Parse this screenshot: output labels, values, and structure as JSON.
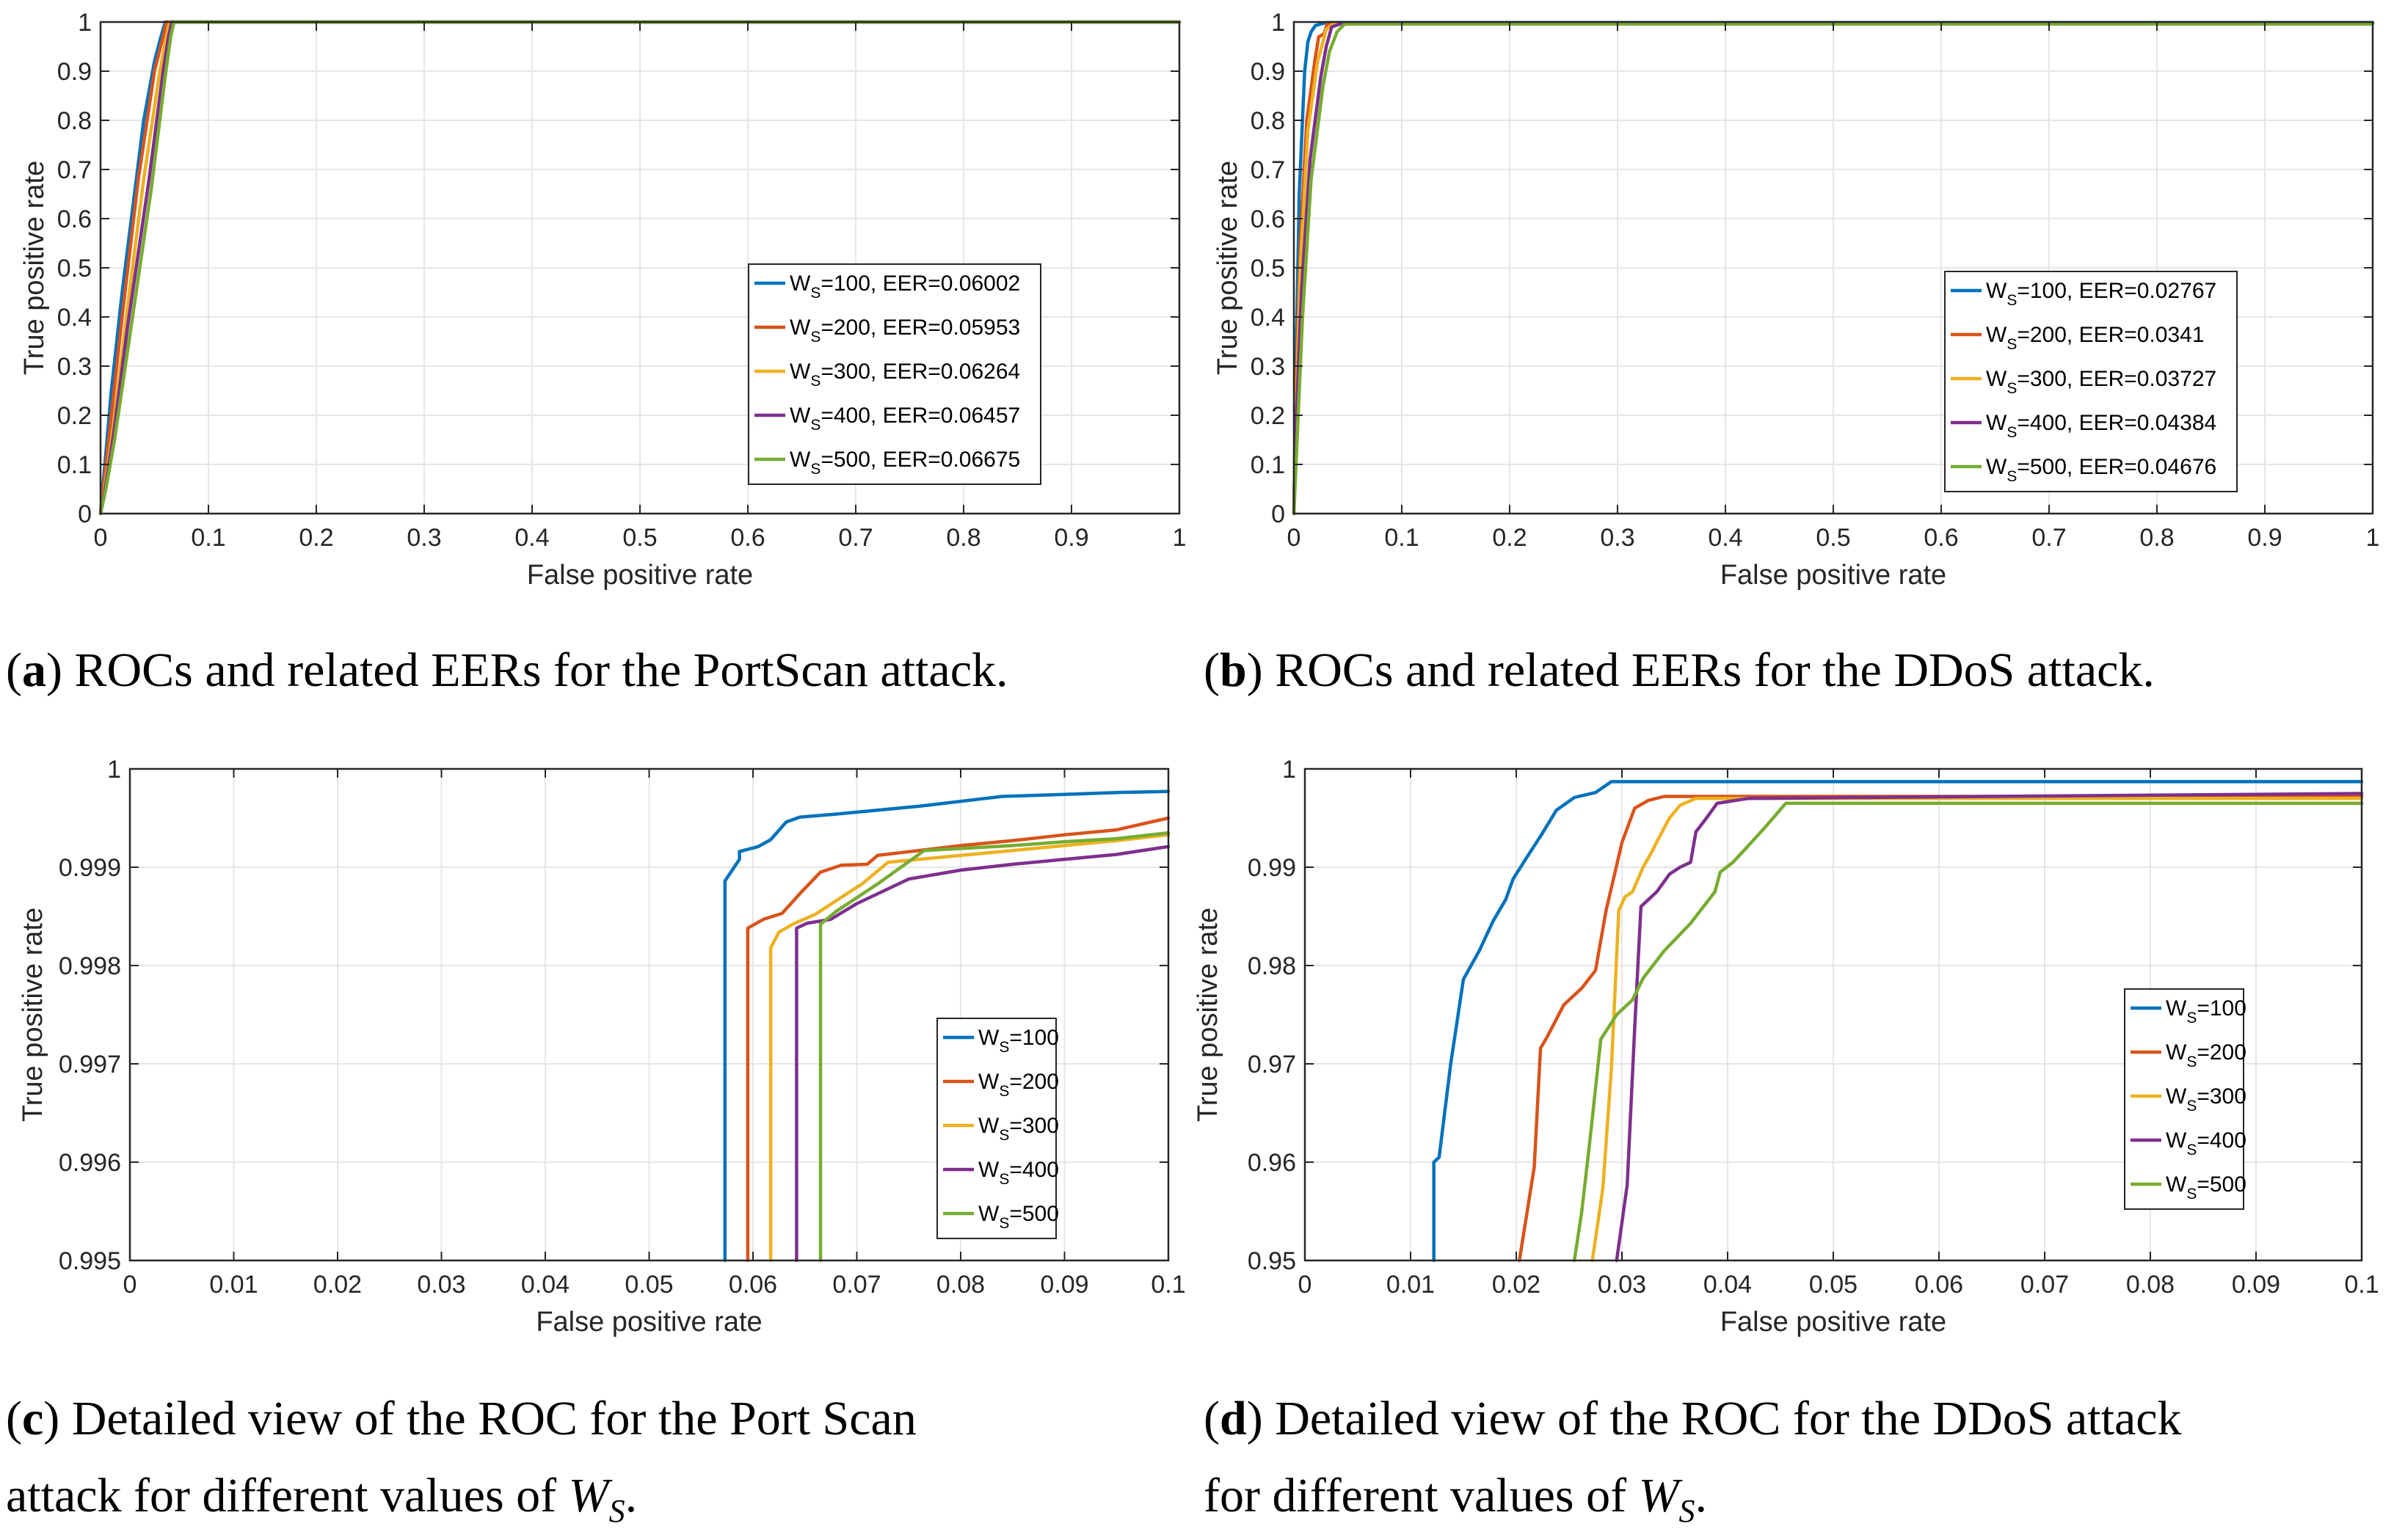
{
  "chart_data": [
    {
      "type": "line",
      "id": "a",
      "xlabel": "False positive rate",
      "ylabel": "True positive rate",
      "xlim": [
        0,
        1
      ],
      "ylim": [
        0,
        1
      ],
      "xticks": [
        "0",
        "0.1",
        "0.2",
        "0.3",
        "0.4",
        "0.5",
        "0.6",
        "0.7",
        "0.8",
        "0.9",
        "1"
      ],
      "yticks": [
        "0",
        "0.1",
        "0.2",
        "0.3",
        "0.4",
        "0.5",
        "0.6",
        "0.7",
        "0.8",
        "0.9",
        "1"
      ],
      "grid": true,
      "legend_position": "center-right",
      "series": [
        {
          "name": "100",
          "eer": "0.06002",
          "color": "#0072BD",
          "x": [
            0,
            0.004,
            0.01,
            0.02,
            0.04,
            0.05,
            0.056,
            0.06,
            1
          ],
          "y": [
            0,
            0.1,
            0.25,
            0.45,
            0.8,
            0.92,
            0.97,
            1,
            1
          ]
        },
        {
          "name": "200",
          "eer": "0.05953",
          "color": "#D95319",
          "x": [
            0,
            0.004,
            0.01,
            0.02,
            0.035,
            0.05,
            0.058,
            0.061,
            1
          ],
          "y": [
            0,
            0.08,
            0.2,
            0.4,
            0.68,
            0.9,
            0.97,
            1,
            1
          ]
        },
        {
          "name": "300",
          "eer": "0.06264",
          "color": "#EDB120",
          "x": [
            0,
            0.005,
            0.012,
            0.025,
            0.04,
            0.055,
            0.061,
            0.064,
            1
          ],
          "y": [
            0,
            0.07,
            0.18,
            0.42,
            0.68,
            0.9,
            0.97,
            1,
            1
          ]
        },
        {
          "name": "400",
          "eer": "0.06457",
          "color": "#7E2F8E",
          "x": [
            0,
            0.005,
            0.012,
            0.025,
            0.045,
            0.058,
            0.063,
            0.066,
            1
          ],
          "y": [
            0,
            0.06,
            0.16,
            0.38,
            0.68,
            0.9,
            0.97,
            1,
            1
          ]
        },
        {
          "name": "500",
          "eer": "0.06675",
          "color": "#77AC30",
          "x": [
            0,
            0.005,
            0.013,
            0.027,
            0.047,
            0.06,
            0.065,
            0.068,
            1
          ],
          "y": [
            0,
            0.05,
            0.15,
            0.36,
            0.66,
            0.89,
            0.97,
            1,
            1
          ]
        }
      ]
    },
    {
      "type": "line",
      "id": "b",
      "xlabel": "False positive rate",
      "ylabel": "True positive rate",
      "xlim": [
        0,
        1
      ],
      "ylim": [
        0,
        1
      ],
      "xticks": [
        "0",
        "0.1",
        "0.2",
        "0.3",
        "0.4",
        "0.5",
        "0.6",
        "0.7",
        "0.8",
        "0.9",
        "1"
      ],
      "yticks": [
        "0",
        "0.1",
        "0.2",
        "0.3",
        "0.4",
        "0.5",
        "0.6",
        "0.7",
        "0.8",
        "0.9",
        "1"
      ],
      "grid": true,
      "legend_position": "center-right",
      "series": [
        {
          "name": "100",
          "eer": "0.02767",
          "color": "#0072BD",
          "x": [
            0,
            0.002,
            0.005,
            0.01,
            0.013,
            0.016,
            0.02,
            0.027,
            0.03,
            1
          ],
          "y": [
            0,
            0.3,
            0.65,
            0.9,
            0.96,
            0.98,
            0.993,
            0.997,
            0.999,
            0.999
          ]
        },
        {
          "name": "200",
          "eer": "0.0341",
          "color": "#D95319",
          "x": [
            0,
            0.002,
            0.006,
            0.012,
            0.02,
            0.023,
            0.028,
            0.031,
            1
          ],
          "y": [
            0,
            0.25,
            0.55,
            0.8,
            0.93,
            0.97,
            0.976,
            0.997,
            0.997
          ]
        },
        {
          "name": "300",
          "eer": "0.03727",
          "color": "#EDB120",
          "x": [
            0,
            0.002,
            0.006,
            0.013,
            0.022,
            0.027,
            0.03,
            0.037,
            1
          ],
          "y": [
            0,
            0.2,
            0.5,
            0.78,
            0.92,
            0.96,
            0.985,
            0.997,
            0.997
          ]
        },
        {
          "name": "400",
          "eer": "0.04384",
          "color": "#7E2F8E",
          "x": [
            0,
            0.002,
            0.007,
            0.015,
            0.025,
            0.03,
            0.035,
            0.044,
            1
          ],
          "y": [
            0,
            0.18,
            0.45,
            0.72,
            0.89,
            0.95,
            0.99,
            0.997,
            0.997
          ]
        },
        {
          "name": "500",
          "eer": "0.04676",
          "color": "#77AC30",
          "x": [
            0,
            0.003,
            0.008,
            0.016,
            0.027,
            0.033,
            0.04,
            0.047,
            1
          ],
          "y": [
            0,
            0.15,
            0.4,
            0.68,
            0.87,
            0.94,
            0.98,
            0.996,
            0.996
          ]
        }
      ]
    },
    {
      "type": "line",
      "id": "c",
      "xlabel": "False positive rate",
      "ylabel": "True positive rate",
      "xlim": [
        0,
        0.1
      ],
      "ylim": [
        0.995,
        1
      ],
      "xticks": [
        "0",
        "0.01",
        "0.02",
        "0.03",
        "0.04",
        "0.05",
        "0.06",
        "0.07",
        "0.08",
        "0.09",
        "0.1"
      ],
      "yticks": [
        "0.995",
        "0.996",
        "0.997",
        "0.998",
        "0.999",
        "1"
      ],
      "grid": true,
      "legend_position": "lower-right",
      "series": [
        {
          "name": "100",
          "color": "#0072BD",
          "x": [
            0.0573,
            0.0573,
            0.0587,
            0.0587,
            0.0605,
            0.0617,
            0.0632,
            0.0645,
            0.068,
            0.072,
            0.076,
            0.08,
            0.084,
            0.09,
            0.095,
            0.1
          ],
          "y": [
            0.995,
            0.99886,
            0.99908,
            0.99916,
            0.99921,
            0.99928,
            0.99946,
            0.99951,
            0.99954,
            0.99958,
            0.99962,
            0.99967,
            0.99972,
            0.99974,
            0.99976,
            0.99977
          ]
        },
        {
          "name": "200",
          "color": "#D95319",
          "x": [
            0.0595,
            0.0595,
            0.061,
            0.0628,
            0.0645,
            0.0665,
            0.0685,
            0.071,
            0.072,
            0.076,
            0.08,
            0.085,
            0.09,
            0.095,
            0.1
          ],
          "y": [
            0.995,
            0.99838,
            0.99847,
            0.99853,
            0.99873,
            0.99895,
            0.99902,
            0.99903,
            0.99912,
            0.99917,
            0.99922,
            0.99927,
            0.99933,
            0.99938,
            0.9995
          ]
        },
        {
          "name": "300",
          "color": "#EDB120",
          "x": [
            0.0617,
            0.0617,
            0.0625,
            0.064,
            0.066,
            0.068,
            0.0705,
            0.073,
            0.076,
            0.08,
            0.085,
            0.09,
            0.095,
            0.1
          ],
          "y": [
            0.995,
            0.99818,
            0.99834,
            0.99843,
            0.99852,
            0.99866,
            0.99883,
            0.99905,
            0.99908,
            0.99912,
            0.99917,
            0.99922,
            0.99927,
            0.99933
          ]
        },
        {
          "name": "400",
          "color": "#7E2F8E",
          "x": [
            0.0642,
            0.0642,
            0.0652,
            0.0675,
            0.07,
            0.075,
            0.08,
            0.085,
            0.09,
            0.095,
            0.1
          ],
          "y": [
            0.995,
            0.99838,
            0.99843,
            0.99847,
            0.99863,
            0.99888,
            0.99897,
            0.99903,
            0.99908,
            0.99913,
            0.99921
          ]
        },
        {
          "name": "500",
          "color": "#77AC30",
          "x": [
            0.0665,
            0.0665,
            0.068,
            0.072,
            0.0765,
            0.08,
            0.085,
            0.09,
            0.095,
            0.1
          ],
          "y": [
            0.995,
            0.99842,
            0.99855,
            0.99883,
            0.99917,
            0.99919,
            0.99922,
            0.99926,
            0.99929,
            0.99935
          ]
        }
      ]
    },
    {
      "type": "line",
      "id": "d",
      "xlabel": "False positive rate",
      "ylabel": "True positive rate",
      "xlim": [
        0,
        0.1
      ],
      "ylim": [
        0.95,
        1
      ],
      "xticks": [
        "0",
        "0.01",
        "0.02",
        "0.03",
        "0.04",
        "0.05",
        "0.06",
        "0.07",
        "0.08",
        "0.09",
        "0.1"
      ],
      "yticks": [
        "0.95",
        "0.96",
        "0.97",
        "0.98",
        "0.99",
        "1"
      ],
      "grid": true,
      "legend_position": "center-right",
      "series": [
        {
          "name": "100",
          "color": "#0072BD",
          "x": [
            0.0122,
            0.0122,
            0.0127,
            0.0138,
            0.015,
            0.0165,
            0.0178,
            0.019,
            0.0197,
            0.021,
            0.0225,
            0.0238,
            0.0255,
            0.0275,
            0.029,
            0.1
          ],
          "y": [
            0.95,
            0.96,
            0.9605,
            0.97,
            0.9786,
            0.9815,
            0.9845,
            0.9867,
            0.9888,
            0.991,
            0.9935,
            0.9958,
            0.9971,
            0.9976,
            0.9987,
            0.9987
          ]
        },
        {
          "name": "200",
          "color": "#D95319",
          "x": [
            0.0203,
            0.0217,
            0.0223,
            0.0229,
            0.0245,
            0.0255,
            0.0262,
            0.0275,
            0.0285,
            0.03,
            0.0312,
            0.0325,
            0.034,
            0.1
          ],
          "y": [
            0.95,
            0.9595,
            0.9716,
            0.9727,
            0.976,
            0.977,
            0.9777,
            0.9795,
            0.9856,
            0.9925,
            0.996,
            0.9968,
            0.9972,
            0.9972
          ]
        },
        {
          "name": "300",
          "color": "#EDB120",
          "x": [
            0.0272,
            0.0282,
            0.029,
            0.0297,
            0.0303,
            0.031,
            0.032,
            0.0328,
            0.0335,
            0.0345,
            0.0355,
            0.037,
            0.1
          ],
          "y": [
            0.95,
            0.9574,
            0.9695,
            0.9856,
            0.987,
            0.9875,
            0.99,
            0.9915,
            0.993,
            0.995,
            0.9963,
            0.997,
            0.997
          ]
        },
        {
          "name": "400",
          "color": "#7E2F8E",
          "x": [
            0.0295,
            0.0305,
            0.0312,
            0.0318,
            0.0325,
            0.0333,
            0.0345,
            0.0355,
            0.0365,
            0.037,
            0.038,
            0.039,
            0.042,
            0.1
          ],
          "y": [
            0.95,
            0.9577,
            0.9735,
            0.986,
            0.9867,
            0.9875,
            0.9893,
            0.99,
            0.9905,
            0.9936,
            0.995,
            0.9965,
            0.997,
            0.9975
          ]
        },
        {
          "name": "500",
          "color": "#77AC30",
          "x": [
            0.0255,
            0.0262,
            0.027,
            0.028,
            0.0295,
            0.031,
            0.032,
            0.034,
            0.0365,
            0.0388,
            0.0393,
            0.0405,
            0.0418,
            0.0435,
            0.0455,
            0.1
          ],
          "y": [
            0.95,
            0.955,
            0.9625,
            0.9725,
            0.975,
            0.9765,
            0.9787,
            0.9815,
            0.9843,
            0.9875,
            0.9895,
            0.9905,
            0.992,
            0.994,
            0.9965,
            0.9965
          ]
        }
      ]
    }
  ],
  "legend": {
    "prefix": "W",
    "subscript": "S",
    "eer_label": ", EER="
  },
  "captions": {
    "a": {
      "label": "a",
      "text": "ROCs and related EERs for the PortScan attack."
    },
    "b": {
      "label": "b",
      "text": "ROCs and related EERs for the DDoS attack."
    },
    "c": {
      "label": "c",
      "line1": "Detailed view of the ROC for the Port Scan",
      "line2_pre": "attack for different values of ",
      "var": "W",
      "sub": "S",
      "end": "."
    },
    "d": {
      "label": "d",
      "line1": "Detailed view of the ROC for the DDoS attack",
      "line2_pre": "for different values of ",
      "var": "W",
      "sub": "S",
      "end": "."
    }
  }
}
